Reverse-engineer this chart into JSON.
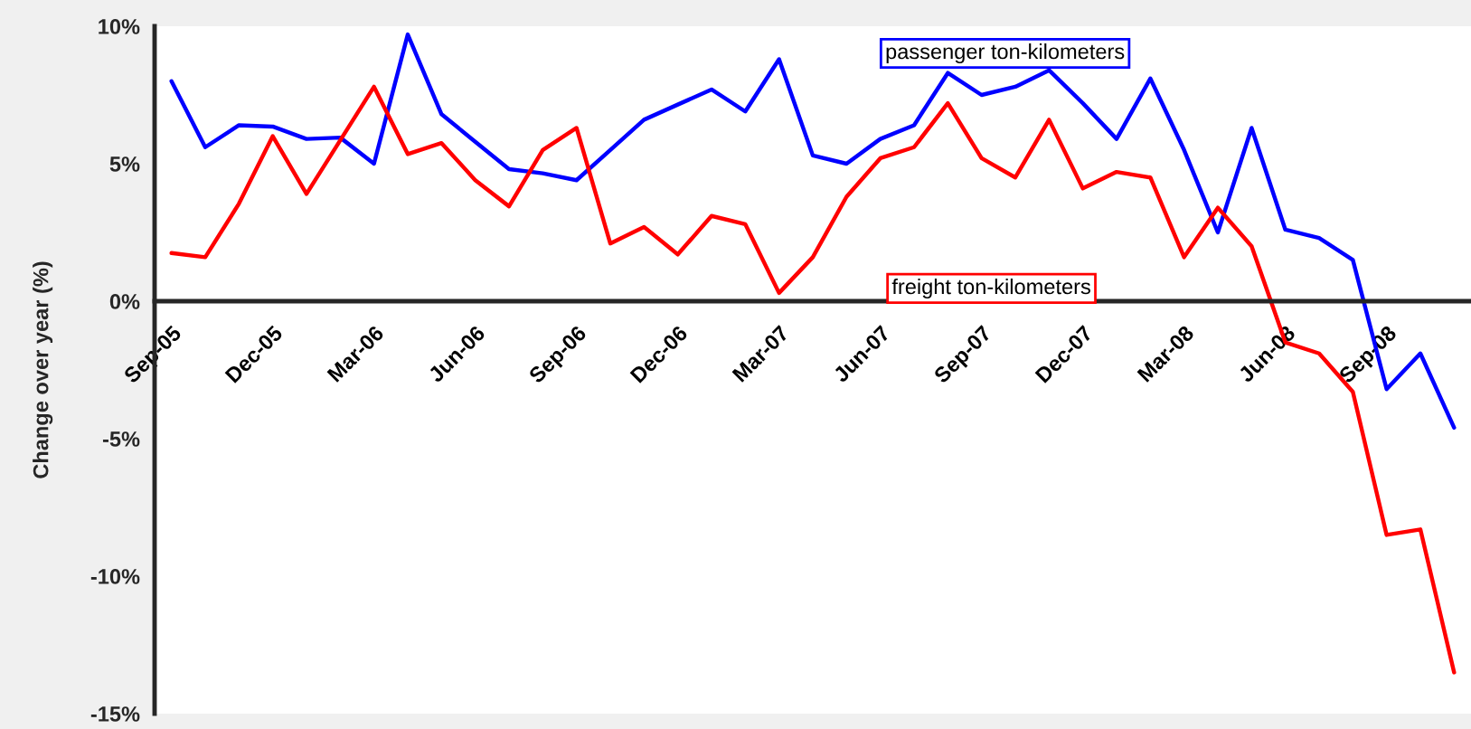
{
  "chart_data": {
    "type": "line",
    "ylabel": "Change over year (%)",
    "categories": [
      "Sep-05",
      null,
      null,
      "Dec-05",
      null,
      null,
      "Mar-06",
      null,
      null,
      "Jun-06",
      null,
      null,
      "Sep-06",
      null,
      null,
      "Dec-06",
      null,
      null,
      "Mar-07",
      null,
      null,
      "Jun-07",
      null,
      null,
      "Sep-07",
      null,
      null,
      "Dec-07",
      null,
      null,
      "Mar-08",
      null,
      null,
      "Jun-08",
      null,
      null,
      "Sep-08",
      null,
      null
    ],
    "series": [
      {
        "name": "passenger ton-kilometers",
        "color": "#0000ff",
        "values": [
          8.0,
          5.6,
          6.4,
          6.35,
          5.9,
          5.95,
          5.0,
          9.7,
          6.8,
          5.8,
          4.8,
          4.65,
          4.4,
          5.5,
          6.6,
          7.15,
          7.7,
          6.9,
          8.8,
          5.3,
          5.0,
          5.9,
          6.4,
          8.3,
          7.5,
          7.8,
          8.4,
          7.2,
          5.9,
          8.1,
          5.5,
          2.5,
          6.3,
          2.6,
          2.3,
          1.5,
          -3.2,
          -1.9,
          -4.6
        ]
      },
      {
        "name": "freight ton-kilometers",
        "color": "#ff0000",
        "values": [
          1.75,
          1.6,
          3.55,
          6.0,
          3.9,
          5.85,
          7.8,
          5.35,
          5.75,
          4.4,
          3.45,
          5.5,
          6.3,
          2.1,
          2.7,
          1.7,
          3.1,
          2.8,
          0.3,
          1.6,
          3.8,
          5.2,
          5.6,
          7.2,
          5.2,
          4.5,
          6.6,
          4.1,
          4.7,
          4.5,
          1.6,
          3.4,
          2.0,
          -1.5,
          -1.9,
          -3.3,
          -8.5,
          -8.3,
          -13.5
        ]
      }
    ],
    "ylim": [
      -15,
      10
    ],
    "yticks": [
      {
        "value": -15,
        "label": "-15%"
      },
      {
        "value": -10,
        "label": "-10%"
      },
      {
        "value": -5,
        "label": "-5%"
      },
      {
        "value": 0,
        "label": "0%"
      },
      {
        "value": 5,
        "label": "5%"
      },
      {
        "value": 10,
        "label": "10%"
      }
    ],
    "grid": false,
    "legend": false,
    "line_style": "solid",
    "marker": "none"
  }
}
